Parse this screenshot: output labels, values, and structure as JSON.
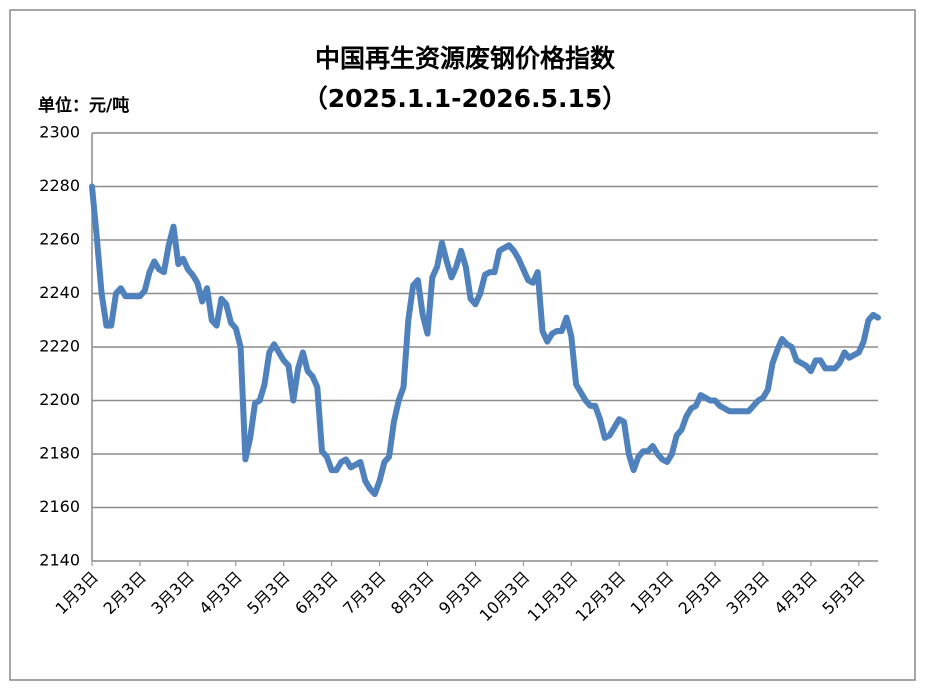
{
  "chart_data": {
    "type": "line",
    "title": "中国再生资源废钢价格指数",
    "subtitle": "（2025.1.1-2026.5.15）",
    "y_axis_label": "单位：元/吨",
    "ylim": [
      2140,
      2300
    ],
    "yticks": [
      2140,
      2160,
      2180,
      2200,
      2220,
      2240,
      2260,
      2280,
      2300
    ],
    "grid": true,
    "color": "#4f81bd",
    "categories": [
      "1月3日",
      null,
      null,
      null,
      null,
      null,
      null,
      null,
      null,
      null,
      "2月3日",
      null,
      null,
      null,
      null,
      null,
      null,
      null,
      null,
      null,
      "3月3日",
      null,
      null,
      null,
      null,
      null,
      null,
      null,
      null,
      null,
      "4月3日",
      null,
      null,
      null,
      null,
      null,
      null,
      null,
      null,
      null,
      "5月3日",
      null,
      null,
      null,
      null,
      null,
      null,
      null,
      null,
      null,
      "6月3日",
      null,
      null,
      null,
      null,
      null,
      null,
      null,
      null,
      null,
      "7月3日",
      null,
      null,
      null,
      null,
      null,
      null,
      null,
      null,
      null,
      "8月3日",
      null,
      null,
      null,
      null,
      null,
      null,
      null,
      null,
      null,
      "9月3日",
      null,
      null,
      null,
      null,
      null,
      null,
      null,
      null,
      null,
      "10月3日",
      null,
      null,
      null,
      null,
      null,
      null,
      null,
      null,
      null,
      "11月3日",
      null,
      null,
      null,
      null,
      null,
      null,
      null,
      null,
      null,
      "12月3日",
      null,
      null,
      null,
      null,
      null,
      null,
      null,
      null,
      null,
      "1月3日",
      null,
      null,
      null,
      null,
      null,
      null,
      null,
      null,
      null,
      "2月3日",
      null,
      null,
      null,
      null,
      null,
      null,
      null,
      null,
      null,
      "3月3日",
      null,
      null,
      null,
      null,
      null,
      null,
      null,
      null,
      null,
      "4月3日",
      null,
      null,
      null,
      null,
      null,
      null,
      null,
      null,
      null,
      "5月3日",
      null,
      null,
      null,
      null
    ],
    "values": [
      2280,
      2261,
      2240,
      2228,
      2228,
      2240,
      2242,
      2239,
      2239,
      2239,
      2239,
      2241,
      2248,
      2252,
      2249,
      2248,
      2258,
      2265,
      2251,
      2253,
      2249,
      2247,
      2244,
      2237,
      2242,
      2230,
      2228,
      2238,
      2236,
      2229,
      2227,
      2220,
      2178,
      2186,
      2199,
      2200,
      2206,
      2218,
      2221,
      2218,
      2215,
      2213,
      2200,
      2212,
      2218,
      2211,
      2209,
      2205,
      2181,
      2179,
      2174,
      2174,
      2177,
      2178,
      2175,
      2176,
      2177,
      2170,
      2167,
      2165,
      2170,
      2177,
      2179,
      2192,
      2200,
      2205,
      2230,
      2243,
      2245,
      2232,
      2225,
      2246,
      2250,
      2259,
      2252,
      2246,
      2250,
      2256,
      2250,
      2238,
      2236,
      2240,
      2247,
      2248,
      2248,
      2256,
      2257,
      2258,
      2256,
      2253,
      2249,
      2245,
      2244,
      2248,
      2226,
      2222,
      2225,
      2226,
      2226,
      2231,
      2224,
      2206,
      2203,
      2200,
      2198,
      2198,
      2193,
      2186,
      2187,
      2190,
      2193,
      2192,
      2180,
      2174,
      2179,
      2181,
      2181,
      2183,
      2180,
      2178,
      2177,
      2180,
      2187,
      2189,
      2194,
      2197,
      2198,
      2202,
      2201,
      2200,
      2200,
      2198,
      2197,
      2196,
      2196,
      2196,
      2196,
      2196,
      2198,
      2200,
      2201,
      2204,
      2214,
      2219,
      2223,
      2221,
      2220,
      2215,
      2214,
      2213,
      2211,
      2215,
      2215,
      2212,
      2212,
      2212,
      2214,
      2218,
      2216,
      2217,
      2218,
      2222,
      2230,
      2232,
      2231
    ]
  }
}
